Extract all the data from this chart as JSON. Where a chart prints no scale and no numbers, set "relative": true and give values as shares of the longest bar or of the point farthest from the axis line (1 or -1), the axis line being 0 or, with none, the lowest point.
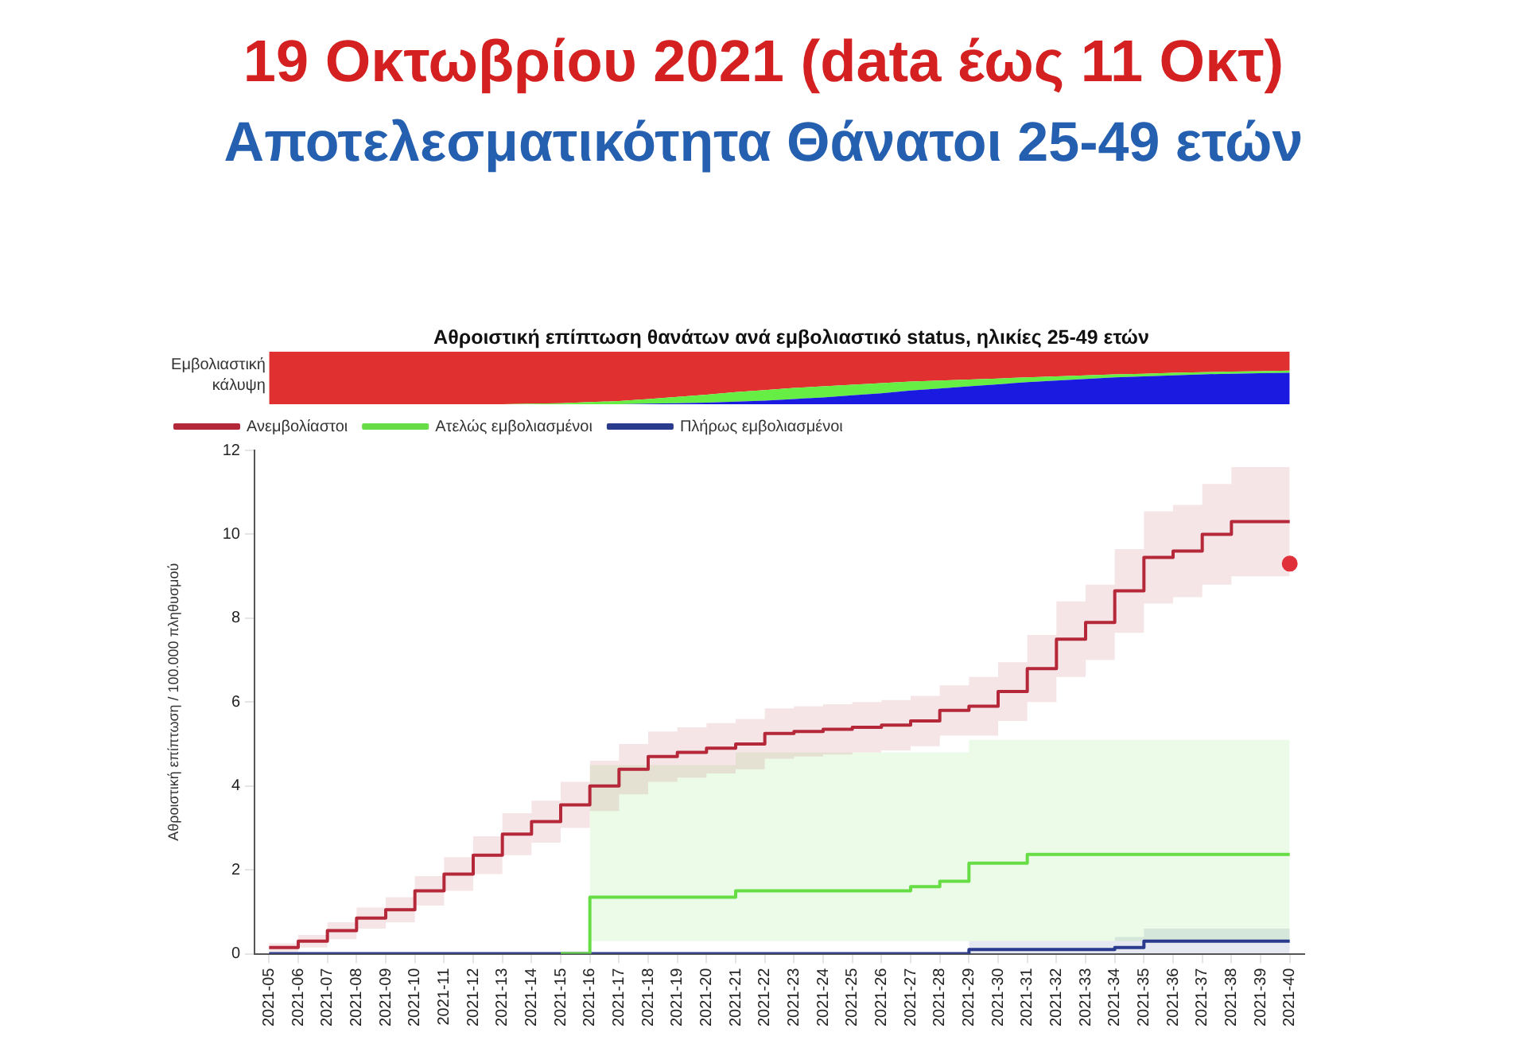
{
  "chart_data": [
    {
      "type": "area",
      "title": "19 Οκτωβρίου 2021 (data έως 11 Οκτ)",
      "subtitle": "Αποτελεσματικότητα Θάνατοι 25-49 ετών",
      "annotations": [
        "Αθροιστική επίπτωση θανάτων ανά εμβολιαστικό status, ηλικίες 25-49 ετών"
      ],
      "ylabel": "Εμβολιαστική κάλυψη",
      "relative": true,
      "stacked": true,
      "categories": [
        null,
        null,
        null,
        null,
        null,
        null,
        null,
        null,
        null,
        null,
        null,
        null,
        null,
        null,
        null,
        null,
        null,
        null,
        null,
        null,
        null,
        null,
        null,
        null,
        null,
        null,
        null,
        null,
        null,
        null,
        null,
        null,
        null,
        null,
        null,
        null
      ],
      "series": [
        {
          "color": "#1a1ae0",
          "values": [
            0,
            0,
            0,
            0,
            0,
            0,
            0,
            0,
            0,
            0,
            0,
            0,
            0,
            0.01,
            0.02,
            0.03,
            0.05,
            0.07,
            0.1,
            0.13,
            0.17,
            0.21,
            0.26,
            0.3,
            0.34,
            0.38,
            0.42,
            0.45,
            0.48,
            0.51,
            0.53,
            0.55,
            0.57,
            0.58,
            0.59,
            0.6
          ]
        },
        {
          "color": "#66ee44",
          "values": [
            0,
            0,
            0,
            0,
            0,
            0,
            0,
            0,
            0,
            0.01,
            0.02,
            0.04,
            0.06,
            0.09,
            0.12,
            0.15,
            0.18,
            0.2,
            0.21,
            0.21,
            0.2,
            0.19,
            0.17,
            0.15,
            0.13,
            0.11,
            0.09,
            0.08,
            0.07,
            0.06,
            0.05,
            0.05,
            0.04,
            0.04,
            0.04,
            0.04
          ]
        },
        {
          "color": "#e03030",
          "values": [
            1,
            1,
            1,
            1,
            1,
            1,
            1,
            1,
            1,
            0.99,
            0.98,
            0.96,
            0.94,
            0.9,
            0.86,
            0.82,
            0.77,
            0.73,
            0.69,
            0.66,
            0.63,
            0.6,
            0.57,
            0.55,
            0.53,
            0.51,
            0.49,
            0.47,
            0.45,
            0.43,
            0.42,
            0.4,
            0.39,
            0.38,
            0.37,
            0.36
          ]
        }
      ]
    },
    {
      "type": "step",
      "ylabel": "Αθροιστική επίπτωση / 100.000 πληθυσμού",
      "ylim": [
        0,
        12
      ],
      "yticks": [
        0,
        2,
        4,
        6,
        8,
        10,
        12
      ],
      "grid": false,
      "legend": "top left",
      "categories": [
        "2021-05",
        "2021-06",
        "2021-07",
        "2021-08",
        "2021-09",
        "2021-10",
        "2021-11",
        "2021-12",
        "2021-13",
        "2021-14",
        "2021-15",
        "2021-16",
        "2021-17",
        "2021-18",
        "2021-19",
        "2021-20",
        "2021-21",
        "2021-22",
        "2021-23",
        "2021-24",
        "2021-25",
        "2021-26",
        "2021-27",
        "2021-28",
        "2021-29",
        "2021-30",
        "2021-31",
        "2021-32",
        "2021-33",
        "2021-34",
        "2021-35",
        "2021-36",
        "2021-37",
        "2021-38",
        "2021-39",
        "2021-40"
      ],
      "series": [
        {
          "name": "Ανεμβολίαστοι",
          "color": "#b5283a",
          "values": [
            0.15,
            0.3,
            0.55,
            0.85,
            1.05,
            1.5,
            1.9,
            2.35,
            2.85,
            3.15,
            3.55,
            4.0,
            4.4,
            4.7,
            4.8,
            4.9,
            5.0,
            5.25,
            5.3,
            5.35,
            5.4,
            5.45,
            5.55,
            5.8,
            5.9,
            6.25,
            6.8,
            7.5,
            7.9,
            8.65,
            9.45,
            9.6,
            10.0,
            10.3,
            10.3,
            10.3
          ],
          "lower": [
            0.05,
            0.15,
            0.35,
            0.6,
            0.75,
            1.15,
            1.5,
            1.9,
            2.35,
            2.65,
            3.0,
            3.4,
            3.8,
            4.1,
            4.2,
            4.3,
            4.4,
            4.65,
            4.7,
            4.75,
            4.8,
            4.85,
            4.95,
            5.2,
            5.2,
            5.55,
            6.0,
            6.6,
            7.0,
            7.65,
            8.35,
            8.5,
            8.8,
            9.0,
            9.0,
            9.0
          ],
          "upper": [
            0.25,
            0.45,
            0.75,
            1.1,
            1.35,
            1.85,
            2.3,
            2.8,
            3.35,
            3.65,
            4.1,
            4.6,
            5.0,
            5.3,
            5.4,
            5.5,
            5.6,
            5.85,
            5.9,
            5.95,
            6.0,
            6.05,
            6.15,
            6.4,
            6.6,
            6.95,
            7.6,
            8.4,
            8.8,
            9.65,
            10.55,
            10.7,
            11.2,
            11.6,
            11.6,
            11.6
          ]
        },
        {
          "name": "Ατελώς εμβολιασμένοι",
          "color": "#66dd44",
          "values": [
            null,
            null,
            null,
            null,
            null,
            null,
            null,
            null,
            null,
            null,
            0,
            1.35,
            1.35,
            1.35,
            1.35,
            1.35,
            1.5,
            1.5,
            1.5,
            1.5,
            1.5,
            1.5,
            1.6,
            1.73,
            2.16,
            2.16,
            2.37,
            2.37,
            2.37,
            2.37,
            2.37,
            2.37,
            2.37,
            2.37,
            2.37,
            2.37
          ],
          "lower": [
            null,
            null,
            null,
            null,
            null,
            null,
            null,
            null,
            null,
            null,
            null,
            0.3,
            0.3,
            0.3,
            0.3,
            0.3,
            0.3,
            0.3,
            0.3,
            0.3,
            0.3,
            0.3,
            0.3,
            0.3,
            0.3,
            0.3,
            0.3,
            0.3,
            0.3,
            0.3,
            0.3,
            0.3,
            0.3,
            0.3,
            0.3,
            0.3
          ],
          "upper": [
            null,
            null,
            null,
            null,
            null,
            null,
            null,
            null,
            null,
            null,
            null,
            4.5,
            4.5,
            4.5,
            4.5,
            4.5,
            4.8,
            4.8,
            4.8,
            4.8,
            4.8,
            4.8,
            4.8,
            4.8,
            5.1,
            5.1,
            5.1,
            5.1,
            5.1,
            5.1,
            5.1,
            5.1,
            5.1,
            5.1,
            5.1,
            5.1
          ]
        },
        {
          "name": "Πλήρως εμβολιασμένοι",
          "color": "#2a3a8c",
          "values": [
            0,
            0,
            0,
            0,
            0,
            0,
            0,
            0,
            0,
            0,
            0,
            0,
            0,
            0,
            0,
            0,
            0,
            0,
            0,
            0,
            0,
            0,
            0,
            0,
            0.1,
            0.1,
            0.1,
            0.1,
            0.1,
            0.15,
            0.3,
            0.3,
            0.3,
            0.3,
            0.3,
            0.3
          ],
          "lower": [
            null,
            null,
            null,
            null,
            null,
            null,
            null,
            null,
            null,
            null,
            null,
            null,
            null,
            null,
            null,
            null,
            null,
            null,
            null,
            null,
            null,
            null,
            null,
            null,
            0,
            0,
            0,
            0,
            0,
            0,
            0,
            0,
            0,
            0,
            0,
            0
          ],
          "upper": [
            null,
            null,
            null,
            null,
            null,
            null,
            null,
            null,
            null,
            null,
            null,
            null,
            null,
            null,
            null,
            null,
            null,
            null,
            null,
            null,
            null,
            null,
            null,
            null,
            0.3,
            0.3,
            0.3,
            0.3,
            0.3,
            0.4,
            0.6,
            0.6,
            0.6,
            0.6,
            0.6,
            0.6
          ]
        },
        {
          "type": "scatter",
          "color": "#e0303a",
          "marker": "circle",
          "x": [
            "2021-40"
          ],
          "values": [
            9.3
          ]
        }
      ]
    }
  ]
}
